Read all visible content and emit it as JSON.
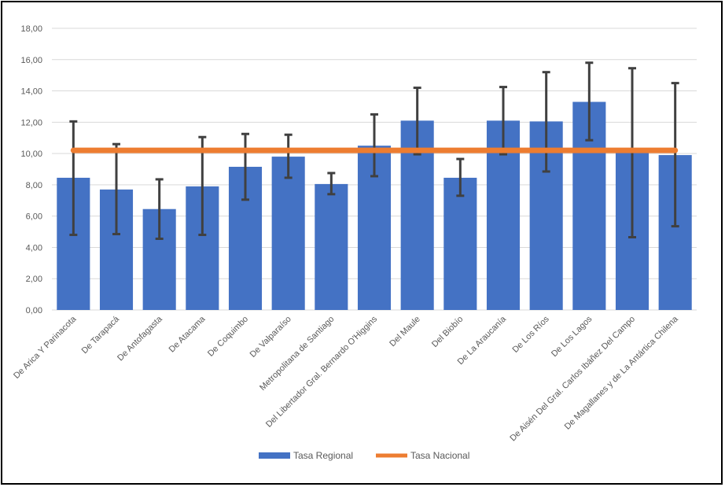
{
  "colors": {
    "bar": "#4472C4",
    "line": "#ED7D31",
    "error": "#404040",
    "grid": "#D9D9D9",
    "text": "#595959"
  },
  "chart_data": {
    "type": "bar",
    "title": "",
    "xlabel": "",
    "ylabel": "",
    "ylim": [
      0,
      18
    ],
    "yticks": [
      "0,00",
      "2,00",
      "4,00",
      "6,00",
      "8,00",
      "10,00",
      "12,00",
      "14,00",
      "16,00",
      "18,00"
    ],
    "ytick_values": [
      0,
      2,
      4,
      6,
      8,
      10,
      12,
      14,
      16,
      18
    ],
    "grid": true,
    "legend_position": "bottom",
    "categories": [
      "De Arica Y Parinacota",
      "De Tarapacá",
      "De Antofagasta",
      "De Atacama",
      "De Coquimbo",
      "De Valparaíso",
      "Metropolitana de Santiago",
      "Del Libertador Gral. Bernardo O'Higgins",
      "Del Maule",
      "Del Biobío",
      "De La Araucanía",
      "De Los Ríos",
      "De Los Lagos",
      "De Aisén Del Gral. Carlos Ibáñez Del Campo",
      "De Magallanes y de La Antártica Chilena"
    ],
    "series": [
      {
        "name": "Tasa Regional",
        "type": "bar",
        "values": [
          8.45,
          7.7,
          6.45,
          7.9,
          9.15,
          9.8,
          8.05,
          10.5,
          12.1,
          8.45,
          12.1,
          12.05,
          13.3,
          10.2,
          9.9
        ],
        "error_low": [
          4.8,
          4.85,
          4.55,
          4.8,
          7.05,
          8.45,
          7.4,
          8.55,
          9.95,
          7.3,
          9.95,
          8.85,
          10.85,
          4.65,
          5.35
        ],
        "error_high": [
          12.05,
          10.6,
          8.35,
          11.05,
          11.25,
          11.2,
          8.75,
          12.5,
          14.2,
          9.65,
          14.25,
          15.2,
          15.8,
          15.45,
          14.5
        ]
      },
      {
        "name": "Tasa Nacional",
        "type": "line",
        "value": 10.2
      }
    ]
  }
}
